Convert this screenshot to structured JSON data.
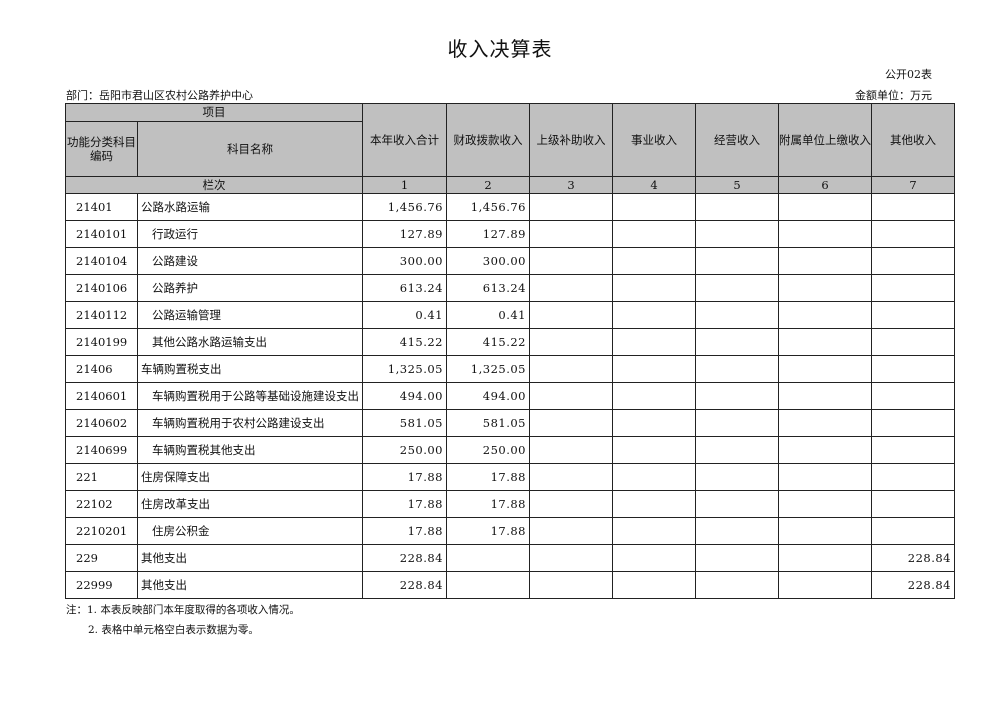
{
  "title": "收入决算表",
  "form_code": "公开02表",
  "department": "部门：岳阳市君山区农村公路养护中心",
  "unit": "金额单位：万元",
  "headers": {
    "item": "项目",
    "code": "功能分类科目编码",
    "name": "科目名称",
    "total": "本年收入合计",
    "fiscal": "财政拨款收入",
    "superior": "上级补助收入",
    "business": "事业收入",
    "operating": "经营收入",
    "affiliated": "附属单位上缴收入",
    "other": "其他收入",
    "row_label": "栏次",
    "col_nums": [
      "1",
      "2",
      "3",
      "4",
      "5",
      "6",
      "7"
    ]
  },
  "rows": [
    {
      "code": "21401",
      "name": "公路水路运输",
      "indent": false,
      "v": [
        "1,456.76",
        "1,456.76",
        "",
        "",
        "",
        "",
        ""
      ]
    },
    {
      "code": "2140101",
      "name": "行政运行",
      "indent": true,
      "v": [
        "127.89",
        "127.89",
        "",
        "",
        "",
        "",
        ""
      ]
    },
    {
      "code": "2140104",
      "name": "公路建设",
      "indent": true,
      "v": [
        "300.00",
        "300.00",
        "",
        "",
        "",
        "",
        ""
      ]
    },
    {
      "code": "2140106",
      "name": "公路养护",
      "indent": true,
      "v": [
        "613.24",
        "613.24",
        "",
        "",
        "",
        "",
        ""
      ]
    },
    {
      "code": "2140112",
      "name": "公路运输管理",
      "indent": true,
      "v": [
        "0.41",
        "0.41",
        "",
        "",
        "",
        "",
        ""
      ]
    },
    {
      "code": "2140199",
      "name": "其他公路水路运输支出",
      "indent": true,
      "v": [
        "415.22",
        "415.22",
        "",
        "",
        "",
        "",
        ""
      ]
    },
    {
      "code": "21406",
      "name": "车辆购置税支出",
      "indent": false,
      "v": [
        "1,325.05",
        "1,325.05",
        "",
        "",
        "",
        "",
        ""
      ]
    },
    {
      "code": "2140601",
      "name": "车辆购置税用于公路等基础设施建设支出",
      "indent": true,
      "v": [
        "494.00",
        "494.00",
        "",
        "",
        "",
        "",
        ""
      ]
    },
    {
      "code": "2140602",
      "name": "车辆购置税用于农村公路建设支出",
      "indent": true,
      "v": [
        "581.05",
        "581.05",
        "",
        "",
        "",
        "",
        ""
      ]
    },
    {
      "code": "2140699",
      "name": "车辆购置税其他支出",
      "indent": true,
      "v": [
        "250.00",
        "250.00",
        "",
        "",
        "",
        "",
        ""
      ]
    },
    {
      "code": "221",
      "name": "住房保障支出",
      "indent": false,
      "v": [
        "17.88",
        "17.88",
        "",
        "",
        "",
        "",
        ""
      ]
    },
    {
      "code": "22102",
      "name": "住房改革支出",
      "indent": false,
      "v": [
        "17.88",
        "17.88",
        "",
        "",
        "",
        "",
        ""
      ]
    },
    {
      "code": "2210201",
      "name": "住房公积金",
      "indent": true,
      "v": [
        "17.88",
        "17.88",
        "",
        "",
        "",
        "",
        ""
      ]
    },
    {
      "code": "229",
      "name": "其他支出",
      "indent": false,
      "v": [
        "228.84",
        "",
        "",
        "",
        "",
        "",
        "228.84"
      ]
    },
    {
      "code": "22999",
      "name": "其他支出",
      "indent": false,
      "v": [
        "228.84",
        "",
        "",
        "",
        "",
        "",
        "228.84"
      ]
    }
  ],
  "notes": [
    "注：1. 本表反映部门本年度取得的各项收入情况。",
    "2. 表格中单元格空白表示数据为零。"
  ]
}
